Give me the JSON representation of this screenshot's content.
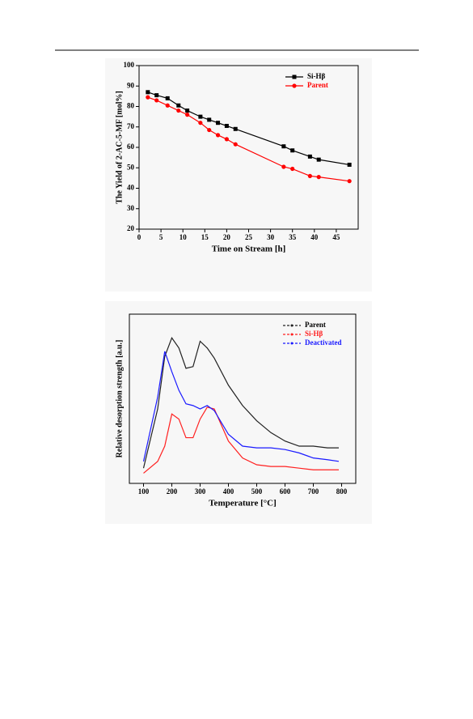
{
  "chart_data": [
    {
      "type": "line",
      "xlabel": "Time on Stream [h]",
      "ylabel": "The Yield of 2-AC-5-MF [mol%]",
      "x": [
        2,
        4,
        6.5,
        9,
        11,
        14,
        16,
        18,
        20,
        22,
        33,
        35,
        39,
        41,
        48
      ],
      "series": [
        {
          "name": "Si-Hβ",
          "color": "#000000",
          "marker": "square",
          "values": [
            87,
            85.5,
            84,
            80.5,
            78,
            75,
            73.5,
            72,
            70.5,
            69,
            60.5,
            58.5,
            55.5,
            54,
            51.5
          ]
        },
        {
          "name": "Parent",
          "color": "#ff0000",
          "marker": "circle",
          "values": [
            84.5,
            83,
            80.5,
            78,
            76,
            72,
            68.5,
            66,
            64,
            61.5,
            50.5,
            49.5,
            46,
            45.5,
            43.5
          ]
        }
      ],
      "xlim": [
        0,
        50
      ],
      "xticks": [
        0,
        5,
        10,
        15,
        20,
        25,
        30,
        35,
        40,
        45
      ],
      "ylim": [
        20,
        100
      ],
      "yticks": [
        20,
        30,
        40,
        50,
        60,
        70,
        80,
        90,
        100
      ],
      "legend": "top-right"
    },
    {
      "type": "line",
      "xlabel": "Temperature [°C]",
      "ylabel": "Relative desorption strength [a.u.]",
      "x": [
        100,
        150,
        175,
        200,
        225,
        250,
        275,
        300,
        325,
        350,
        400,
        450,
        500,
        550,
        600,
        650,
        700,
        750,
        790
      ],
      "series": [
        {
          "name": "Parent",
          "color": "#222222",
          "values": [
            9,
            44,
            75,
            86,
            80,
            68,
            69,
            84,
            80,
            74,
            58,
            46,
            37,
            30,
            25,
            22,
            22,
            21,
            21
          ]
        },
        {
          "name": "Si-Hβ",
          "color": "#ff2020",
          "values": [
            6,
            13,
            22,
            41,
            38,
            27,
            27,
            38,
            45,
            44,
            25,
            15,
            11,
            10,
            10,
            9,
            8,
            8,
            8
          ]
        },
        {
          "name": "Deactivated",
          "color": "#1a1aff",
          "values": [
            13,
            51,
            78,
            66,
            55,
            47,
            46,
            44,
            46,
            43,
            29,
            22,
            21,
            21,
            20,
            18,
            15,
            14,
            13
          ]
        }
      ],
      "xlim": [
        50,
        850
      ],
      "xticks": [
        100,
        200,
        300,
        400,
        500,
        600,
        700,
        800
      ],
      "ylim": [
        0,
        100
      ],
      "legend": "top-right"
    }
  ]
}
